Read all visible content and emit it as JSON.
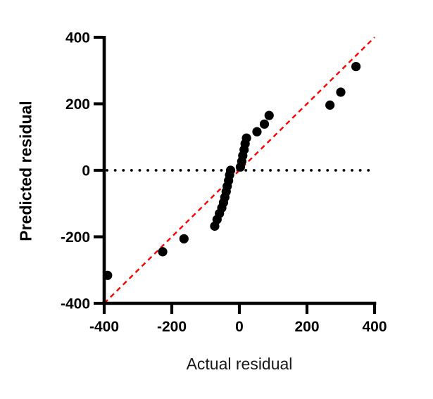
{
  "chart_data": {
    "type": "scatter",
    "title": "",
    "xlabel": "Actual residual",
    "ylabel": "Predicted residual",
    "xlim": [
      -400,
      400
    ],
    "ylim": [
      -400,
      400
    ],
    "x_ticks": [
      -400,
      -200,
      0,
      200,
      400
    ],
    "y_ticks": [
      -400,
      -200,
      0,
      200,
      400
    ],
    "grid": false,
    "legend": null,
    "point_color": "#000000",
    "axis_color": "#000000",
    "background_color": "#ffffff",
    "points": [
      [
        -390,
        -316
      ],
      [
        -227,
        -245
      ],
      [
        -164,
        -206
      ],
      [
        -73,
        -168
      ],
      [
        -66,
        -148
      ],
      [
        -59,
        -130
      ],
      [
        -52,
        -113
      ],
      [
        -47,
        -97
      ],
      [
        -43,
        -81
      ],
      [
        -39,
        -64
      ],
      [
        -36,
        -48
      ],
      [
        -32,
        -31
      ],
      [
        -29,
        -14
      ],
      [
        -26,
        0
      ],
      [
        3,
        10
      ],
      [
        7,
        27
      ],
      [
        10,
        44
      ],
      [
        14,
        62
      ],
      [
        17,
        80
      ],
      [
        21,
        97
      ],
      [
        52,
        116
      ],
      [
        74,
        139
      ],
      [
        88,
        165
      ],
      [
        268,
        196
      ],
      [
        300,
        235
      ],
      [
        345,
        312
      ]
    ],
    "identity_line": {
      "from": [
        -400,
        -400
      ],
      "to": [
        400,
        400
      ],
      "color": "#ff0000",
      "style": "dashed"
    },
    "zero_line": {
      "y": 0,
      "color": "#000000",
      "style": "dotted"
    }
  }
}
